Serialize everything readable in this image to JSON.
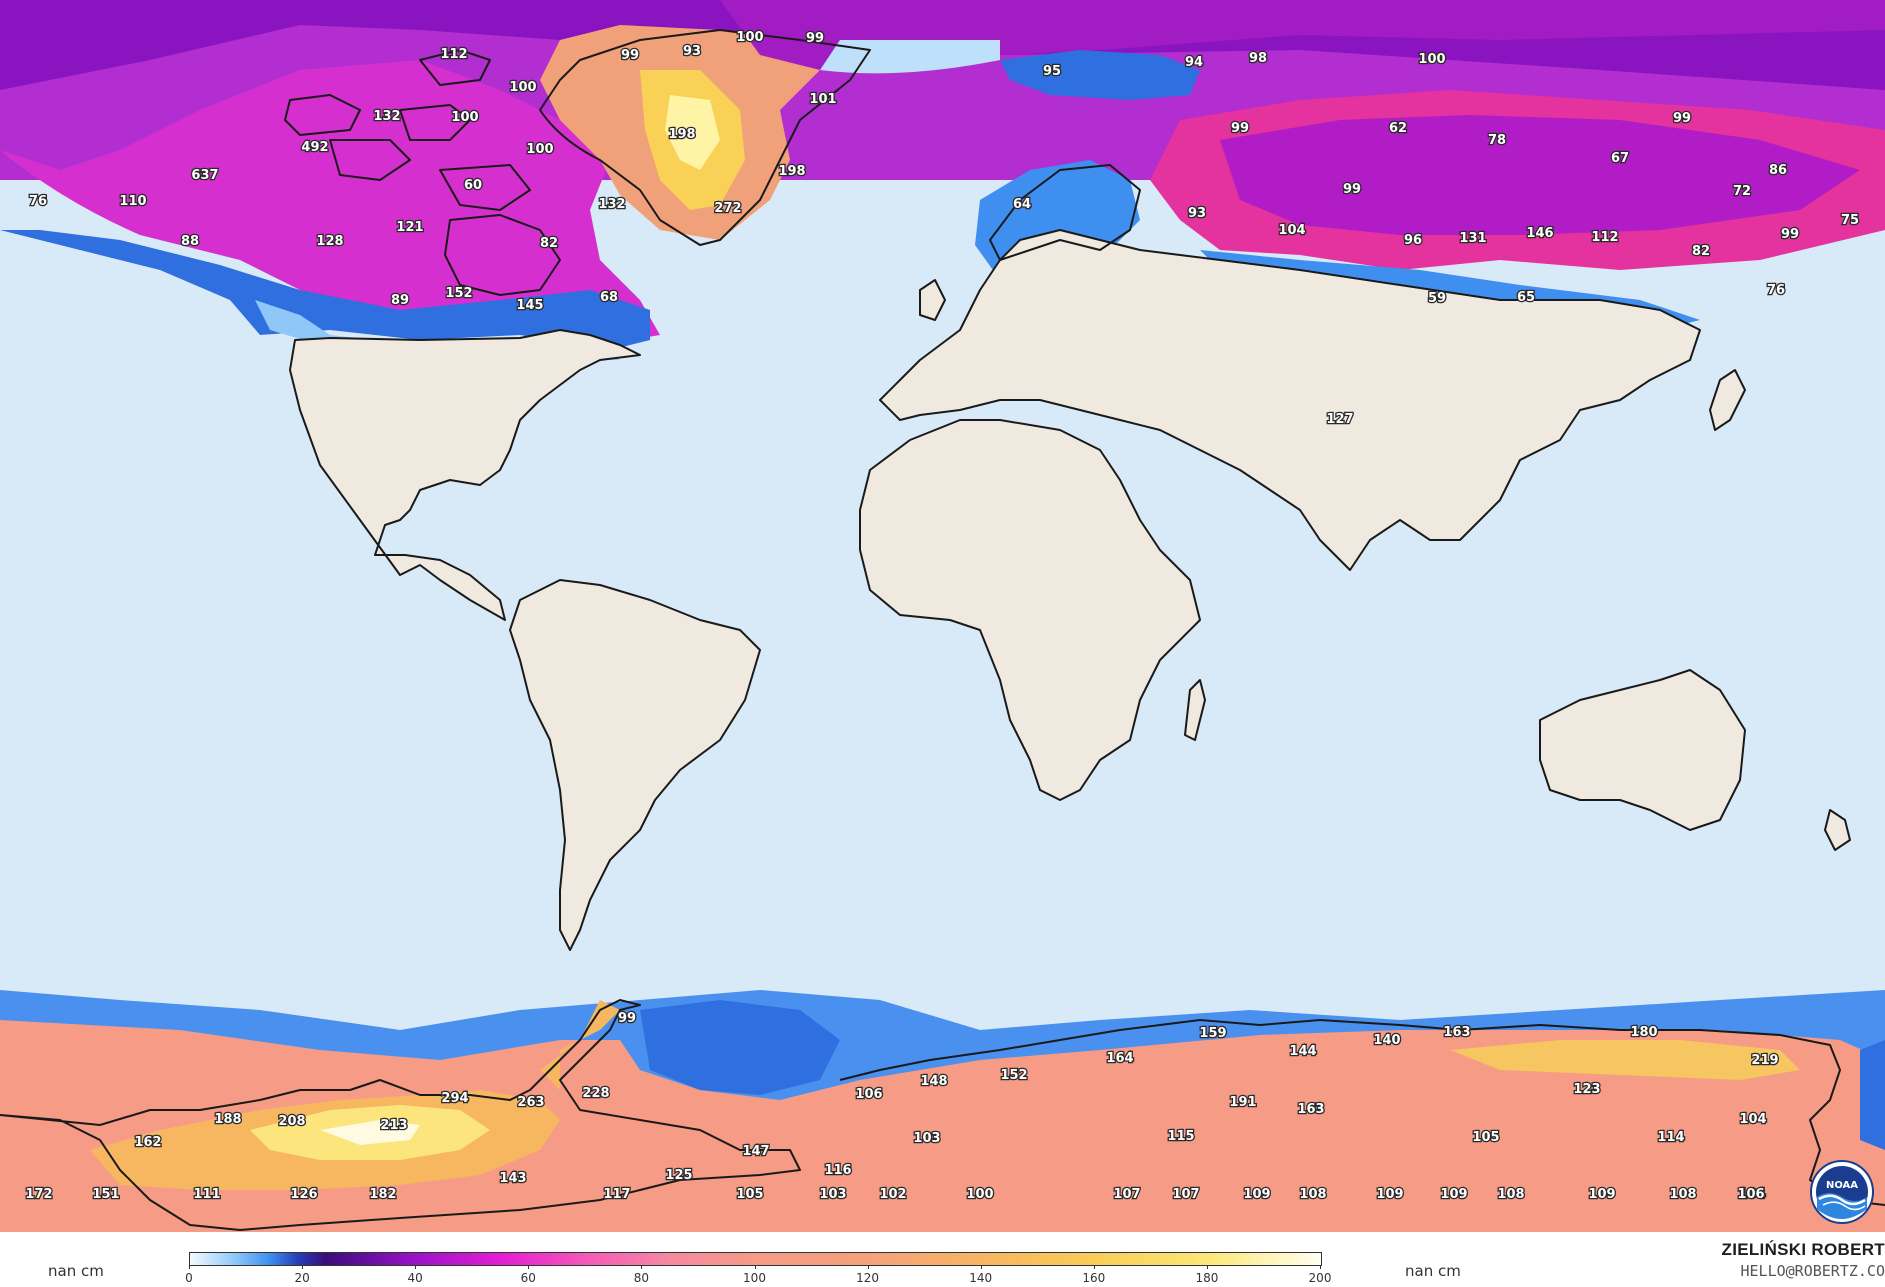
{
  "legend": {
    "unit_left": "nan cm",
    "unit_right": "nan cm",
    "ticks": [
      "0",
      "20",
      "40",
      "60",
      "80",
      "100",
      "120",
      "140",
      "160",
      "180",
      "200"
    ],
    "colormap": [
      {
        "v": 0,
        "c": "#f4fbff"
      },
      {
        "v": 8,
        "c": "#8fc8f8"
      },
      {
        "v": 14,
        "c": "#3f8ff0"
      },
      {
        "v": 19,
        "c": "#2540b8"
      },
      {
        "v": 24,
        "c": "#3a0d7a"
      },
      {
        "v": 40,
        "c": "#9b14c8"
      },
      {
        "v": 55,
        "c": "#e21fd2"
      },
      {
        "v": 70,
        "c": "#f45ab8"
      },
      {
        "v": 85,
        "c": "#f58aa2"
      },
      {
        "v": 100,
        "c": "#f59b86"
      },
      {
        "v": 120,
        "c": "#f4a27c"
      },
      {
        "v": 140,
        "c": "#f7b563"
      },
      {
        "v": 160,
        "c": "#f9cd58"
      },
      {
        "v": 180,
        "c": "#fbe87a"
      },
      {
        "v": 200,
        "c": "#fffff0"
      }
    ]
  },
  "colors": {
    "ocean": "#d8e9f8",
    "land": "#f0e9df",
    "border": "#1a1a1a",
    "snow_polar_blue": "#3f8ff0",
    "snow_purple": "#9b14c8",
    "snow_magenta": "#e21fd2",
    "snow_salmon": "#f59b86",
    "snow_yellow": "#fbe87a"
  },
  "credit": {
    "name": "ZIELIŃSKI ROBERT",
    "email": "HELLO@ROBERTZ.CO"
  },
  "logo": {
    "name": "noaa-logo",
    "text": "NOAA"
  },
  "map_labels": [
    "112",
    "99",
    "93",
    "100",
    "99",
    "100",
    "132",
    "100",
    "492",
    "100",
    "60",
    "132",
    "82",
    "145",
    "68",
    "152",
    "89",
    "121",
    "128",
    "110",
    "88",
    "76",
    "637",
    "198",
    "198",
    "272",
    "101",
    "95",
    "94",
    "98",
    "100",
    "99",
    "62",
    "78",
    "99",
    "67",
    "99",
    "86",
    "72",
    "75",
    "93",
    "104",
    "96",
    "131",
    "146",
    "112",
    "82",
    "99",
    "76",
    "59",
    "65",
    "127",
    "64",
    "99",
    "294",
    "263",
    "228",
    "213",
    "208",
    "188",
    "162",
    "172",
    "151",
    "111",
    "126",
    "182",
    "143",
    "117",
    "125",
    "147",
    "105",
    "116",
    "103",
    "102",
    "103",
    "100",
    "106",
    "148",
    "152",
    "164",
    "159",
    "144",
    "140",
    "163",
    "180",
    "219",
    "191",
    "163",
    "115",
    "123",
    "105",
    "114",
    "104",
    "104",
    "107",
    "107",
    "109",
    "108",
    "109",
    "109",
    "108",
    "109",
    "108",
    "106",
    "107",
    "107"
  ]
}
